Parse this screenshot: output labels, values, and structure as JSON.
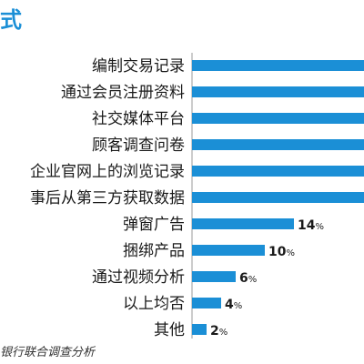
{
  "title": "式",
  "source": "银行联合调查分析",
  "colors": {
    "bar": "#1b8fd6",
    "title": "#1b8fd6",
    "axis": "#999999",
    "label": "#1a1a1a"
  },
  "chart_data": {
    "type": "bar",
    "orientation": "horizontal",
    "value_suffix": "%",
    "categories": [
      "编制交易记录",
      "通过会员注册资料",
      "社交媒体平台",
      "顾客调查问卷",
      "企业官网上的浏览记录",
      "事后从第三方获取数据",
      "弹窗广告",
      "捆绑产品",
      "通过视频分析",
      "以上均否",
      "其他"
    ],
    "values": [
      null,
      null,
      null,
      null,
      null,
      null,
      14,
      10,
      6,
      4,
      2
    ],
    "labels": [
      "",
      "",
      "",
      "",
      "",
      "",
      "14",
      "10",
      "6",
      "4",
      "2"
    ],
    "xlim": [
      0,
      20
    ]
  }
}
